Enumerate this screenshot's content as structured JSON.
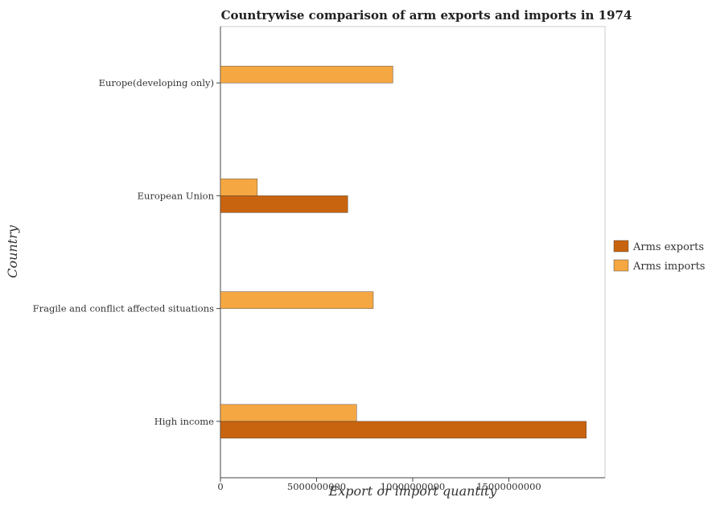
{
  "chart_data": {
    "type": "bar",
    "orientation": "horizontal",
    "title": "Countrywise comparison of arm exports and imports in 1974",
    "xlabel": "Export or import quantity",
    "ylabel": "Country",
    "categories": [
      "Europe(developing only)",
      "European Union",
      "Fragile and conflict affected situations",
      "High income"
    ],
    "series": [
      {
        "name": "Arms exports",
        "color": "#c8640f",
        "values": [
          0,
          6620000000,
          0,
          19030000000
        ]
      },
      {
        "name": "Arms imports",
        "color": "#f5a742",
        "values": [
          8970000000,
          1920000000,
          7950000000,
          7080000000
        ]
      }
    ],
    "xlim": [
      0,
      20000000000
    ],
    "xticks": [
      0,
      5000000000,
      10000000000,
      15000000000
    ],
    "xtick_labels": [
      "0",
      "5000000000",
      "10000000000",
      "15000000000"
    ],
    "grid": false,
    "legend_position": "right"
  }
}
